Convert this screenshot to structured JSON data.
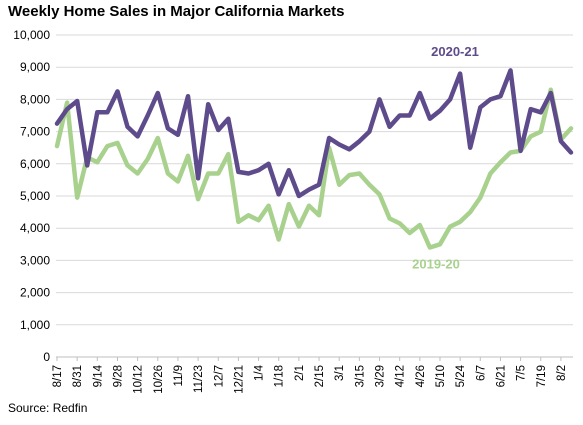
{
  "chart_data": {
    "type": "line",
    "title": "Weekly Home Sales in Major California Markets",
    "source": "Source: Redfin",
    "ylim": [
      0,
      10000
    ],
    "yticks": [
      "0",
      "1,000",
      "2,000",
      "3,000",
      "4,000",
      "5,000",
      "6,000",
      "7,000",
      "8,000",
      "9,000",
      "10,000"
    ],
    "x_tick_labels": [
      "8/17",
      "8/31",
      "9/14",
      "9/28",
      "10/12",
      "10/26",
      "11/9",
      "11/23",
      "12/7",
      "12/21",
      "1/4",
      "1/18",
      "2/1",
      "2/15",
      "3/1",
      "3/15",
      "3/29",
      "4/12",
      "4/26",
      "5/10",
      "5/24",
      "6/7",
      "6/21",
      "7/5",
      "7/19",
      "8/2"
    ],
    "grid": true,
    "colors": {
      "2020-21": "#5e4b8b",
      "2019-20": "#a9d18e"
    },
    "series": [
      {
        "name": "2020-21",
        "values": [
          7250,
          7700,
          7950,
          5950,
          7600,
          7600,
          8250,
          7150,
          6850,
          7500,
          8200,
          7100,
          6900,
          8100,
          5550,
          7850,
          7050,
          7400,
          5750,
          5700,
          5800,
          6000,
          5050,
          5800,
          5000,
          5200,
          5350,
          6800,
          6600,
          6450,
          6700,
          7000,
          8000,
          7150,
          7500,
          7500,
          8200,
          7400,
          7650,
          8000,
          8800,
          6500,
          7750,
          8000,
          8100,
          8900,
          6400,
          7700,
          7600,
          8200,
          6700,
          6350
        ]
      },
      {
        "name": "2019-20",
        "values": [
          6550,
          7900,
          4950,
          6200,
          6050,
          6550,
          6650,
          5950,
          5700,
          6150,
          6800,
          5700,
          5450,
          6250,
          4900,
          5700,
          5700,
          6300,
          4200,
          4400,
          4250,
          4700,
          3650,
          4750,
          4050,
          4700,
          4400,
          6500,
          5350,
          5650,
          5700,
          5350,
          5050,
          4300,
          4150,
          3850,
          4100,
          3400,
          3500,
          4050,
          4200,
          4500,
          4950,
          5700,
          6050,
          6350,
          6400,
          6850,
          7000,
          8300,
          6750,
          7100
        ]
      }
    ]
  }
}
